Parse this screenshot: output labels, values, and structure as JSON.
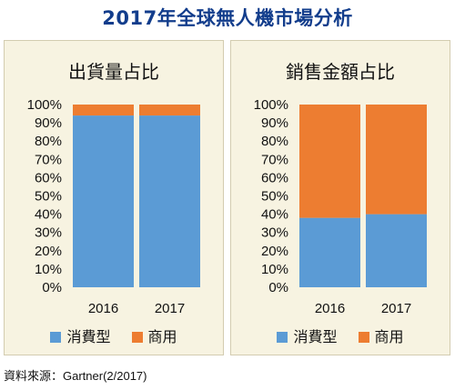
{
  "page_title": "2017年全球無人機市場分析",
  "source": "資料來源：Gartner(2/2017)",
  "colors": {
    "consumer": "#5b9bd5",
    "commercial": "#ed7d31",
    "panel_bg": "#f7f3e1",
    "title": "#123d8c"
  },
  "chart_data": [
    {
      "type": "bar",
      "stacked": true,
      "title": "出貨量占比",
      "categories": [
        "2016",
        "2017"
      ],
      "series": [
        {
          "name": "消費型",
          "values": [
            94,
            94
          ]
        },
        {
          "name": "商用",
          "values": [
            6,
            6
          ]
        }
      ],
      "ylim": [
        0,
        100
      ],
      "yticks": [
        "0%",
        "10%",
        "20%",
        "30%",
        "40%",
        "50%",
        "60%",
        "70%",
        "80%",
        "90%",
        "100%"
      ],
      "grid": false,
      "legend": "bottom"
    },
    {
      "type": "bar",
      "stacked": true,
      "title": "銷售金額占比",
      "categories": [
        "2016",
        "2017"
      ],
      "series": [
        {
          "name": "消費型",
          "values": [
            38,
            40
          ]
        },
        {
          "name": "商用",
          "values": [
            62,
            60
          ]
        }
      ],
      "ylim": [
        0,
        100
      ],
      "yticks": [
        "0%",
        "10%",
        "20%",
        "30%",
        "40%",
        "50%",
        "60%",
        "70%",
        "80%",
        "90%",
        "100%"
      ],
      "grid": false,
      "legend": "bottom"
    }
  ]
}
